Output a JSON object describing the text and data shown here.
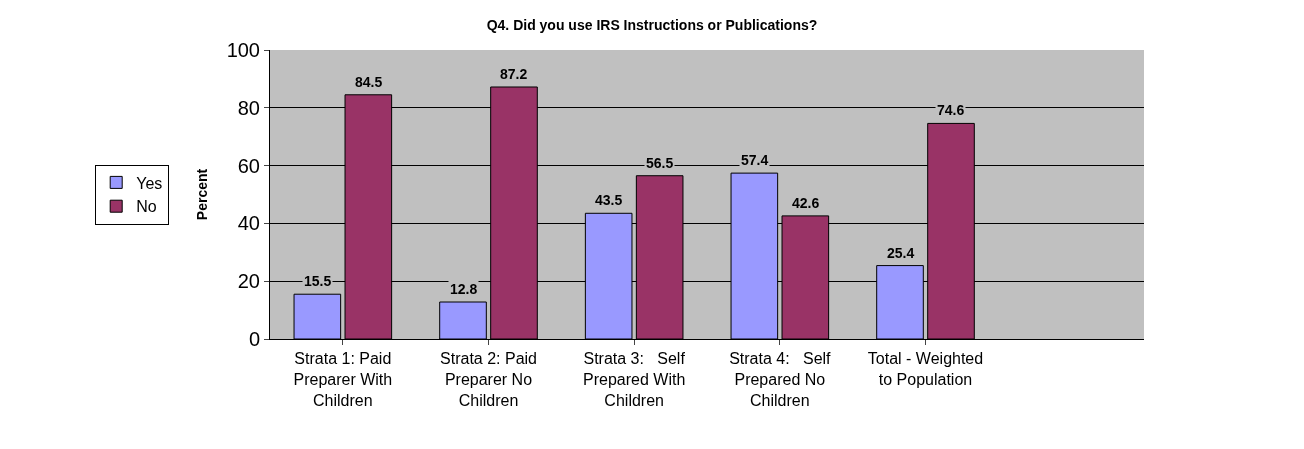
{
  "chart_data": {
    "type": "bar",
    "title": "Q4. Did you use IRS Instructions or Publications?",
    "ylabel": "Percent",
    "categories": [
      "Strata 1: Paid Preparer With Children",
      "Strata 2: Paid Preparer No Children",
      "Strata 3:   Self Prepared With Children",
      "Strata 4:   Self Prepared No Children",
      "Total - Weighted to Population",
      null
    ],
    "series": [
      {
        "name": "Yes",
        "color": "#9999ff",
        "values": [
          15.5,
          12.8,
          43.5,
          57.4,
          25.4,
          null
        ]
      },
      {
        "name": "No",
        "color": "#993366",
        "values": [
          84.5,
          87.2,
          56.5,
          42.6,
          74.6,
          null
        ]
      }
    ],
    "ylim": [
      0,
      100
    ],
    "yticks": [
      0,
      20,
      40,
      60,
      80,
      100
    ],
    "grid": "y",
    "legend": "left",
    "data_labels": true
  }
}
